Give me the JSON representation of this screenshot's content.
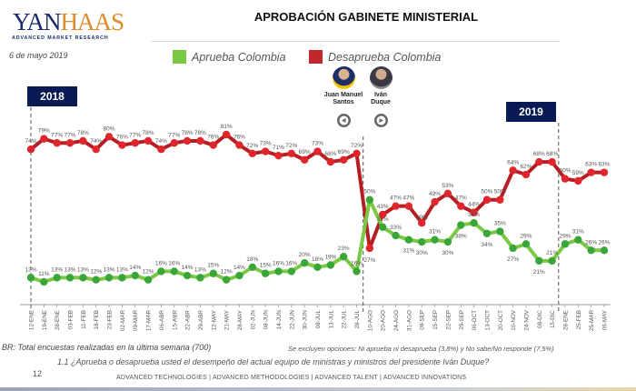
{
  "header": {
    "logo": {
      "brand": "YANHAAS",
      "tagline": "ADVANCED MARKET RESEARCH"
    },
    "title": "APROBACIÓN GABINETE MINISTERIAL",
    "date": "6 de mayo 2019"
  },
  "legend": [
    {
      "label": "Aprueba Colombia",
      "color": "#7ac943"
    },
    {
      "label": "Desaprueba Colombia",
      "color": "#c1272d"
    }
  ],
  "years": {
    "first": "2018",
    "second": "2019"
  },
  "presidents": [
    {
      "name_line1": "Juan Manuel",
      "name_line2": "Santos",
      "nav_icon": "triangle-left-icon"
    },
    {
      "name_line1": "Iván",
      "name_line2": "Duque",
      "nav_icon": "triangle-right-icon"
    }
  ],
  "chart_data": {
    "type": "line",
    "title": "APROBACIÓN GABINETE MINISTERIAL",
    "xlabel": "",
    "ylabel": "",
    "ylim": [
      0,
      100
    ],
    "grid": false,
    "legend_position": "top",
    "categories": [
      "12-ENE",
      "19-ENE",
      "28-ENE",
      "03-FEB",
      "11-FEB",
      "18-FEB",
      "23-FEB",
      "02-MAR",
      "09-MAR",
      "17-MAR",
      "06-ABR",
      "15-ABR",
      "22-ABR",
      "29-ABR",
      "12-MAY",
      "21-MAY",
      "28-MAY",
      "02-JUN",
      "08-JUN",
      "14-JUN",
      "22-JUN",
      "30-JUN",
      "08-JUL",
      "13-JUL",
      "22-JUL",
      "28-JUL",
      "10-AGO",
      "20-AGO",
      "24-AGO",
      "31-AGO",
      "09-SEP",
      "15-SEP",
      "22-SEP",
      "29-SEP",
      "06-OCT",
      "13-OCT",
      "20-OCT",
      "10-NOV",
      "24-NOV",
      "08-DIC",
      "15-DIC",
      "28-ENE",
      "25-FEB",
      "25-MAR",
      "06-MAY"
    ],
    "series": [
      {
        "name": "Desaprueba Colombia",
        "color": "#c1272d",
        "values": [
          74,
          79,
          77,
          77,
          78,
          74,
          80,
          76,
          77,
          78,
          74,
          77,
          78,
          78,
          76,
          81,
          76,
          72,
          73,
          71,
          72,
          69,
          73,
          68,
          69,
          72,
          27,
          43,
          47,
          47,
          39,
          49,
          53,
          47,
          44,
          50,
          50,
          64,
          62,
          68,
          68,
          60,
          59,
          63,
          63
        ]
      },
      {
        "name": "Aprueba Colombia",
        "color": "#7ac943",
        "values": [
          13,
          11,
          13,
          13,
          13,
          12,
          13,
          13,
          14,
          12,
          16,
          16,
          14,
          13,
          15,
          12,
          14,
          18,
          15,
          16,
          16,
          20,
          18,
          19,
          23,
          16,
          50,
          37,
          33,
          31,
          30,
          31,
          30,
          38,
          39,
          34,
          35,
          27,
          29,
          21,
          21,
          29,
          31,
          26,
          26
        ]
      }
    ],
    "value_suffix": "%",
    "annotations": [
      "2018",
      "2019",
      "Juan Manuel Santos",
      "Iván Duque"
    ]
  },
  "notes": {
    "base": "BR: Total encuestas realizadas en la última semana (700)",
    "excluded": "Se excluyen opciones: Ni aprueba ni desaprueba  (3,8%) y No sabe/No responde (7,5%)",
    "question": "1.1 ¿Aprueba o desaprueba usted el desempeño del actual equipo de ministras y ministros del presidente Iván Duque?"
  },
  "footer": {
    "page": "12",
    "text": "ADVANCED TECHNOLOGIES  |  ADVANCED METHODOLOGIES  |  ADVANCED TALENT  |  ADVANCED INNOVATIONS"
  }
}
